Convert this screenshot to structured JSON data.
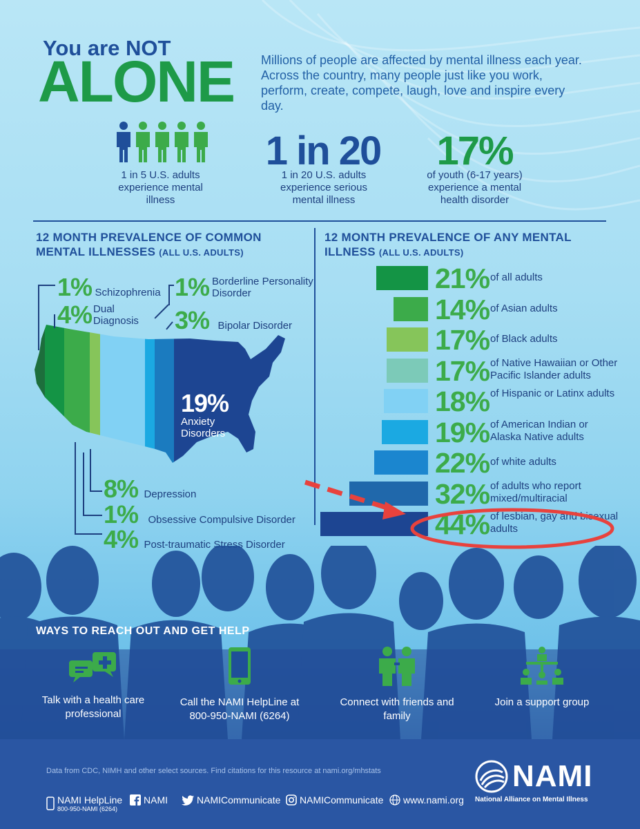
{
  "header": {
    "line1": "You are NOT",
    "line2": "ALONE",
    "intro": "Millions of people are affected by mental illness each year. Across the country, many people just like you work, perform, create, compete, laugh, love and inspire every day."
  },
  "stats": [
    {
      "big": "",
      "caption": "1 in 5 U.S. adults experience mental illness"
    },
    {
      "big": "1 in 20",
      "caption": "1 in 20 U.S. adults experience serious mental illness"
    },
    {
      "big": "17%",
      "caption": "of youth (6-17 years) experience a mental health disorder"
    }
  ],
  "left_section": {
    "title": "12 MONTH PREVALENCE OF COMMON MENTAL ILLNESSES",
    "subtitle": "(ALL U.S. ADULTS)",
    "items": [
      {
        "pct": "1%",
        "label": "Schizophrenia"
      },
      {
        "pct": "4%",
        "label": "Dual Diagnosis"
      },
      {
        "pct": "1%",
        "label": "Borderline Personality Disorder"
      },
      {
        "pct": "3%",
        "label": "Bipolar Disorder"
      },
      {
        "pct": "19%",
        "label": "Anxiety Disorders"
      },
      {
        "pct": "8%",
        "label": "Depression"
      },
      {
        "pct": "1%",
        "label": "Obsessive Compulsive Disorder"
      },
      {
        "pct": "4%",
        "label": "Post-traumatic Stress Disorder"
      }
    ]
  },
  "right_section": {
    "title": "12 MONTH PREVALENCE OF ANY MENTAL ILLNESS",
    "subtitle": "(ALL U.S. ADULTS)"
  },
  "chart_data": {
    "type": "bar",
    "orientation": "horizontal",
    "title": "12 MONTH PREVALENCE OF ANY MENTAL ILLNESS (ALL U.S. ADULTS)",
    "categories": [
      "of all adults",
      "of Asian adults",
      "of Black adults",
      "of Native Hawaiian or Other Pacific Islander adults",
      "of Hispanic or Latinx adults",
      "of American Indian or Alaska Native adults",
      "of white adults",
      "of adults who report mixed/multiracial",
      "of lesbian, gay and bisexual adults"
    ],
    "values": [
      21,
      14,
      17,
      17,
      18,
      19,
      22,
      32,
      44
    ],
    "labels": [
      "21%",
      "14%",
      "17%",
      "17%",
      "18%",
      "19%",
      "22%",
      "32%",
      "44%"
    ],
    "colors": [
      "#149445",
      "#3cab4a",
      "#86c55a",
      "#7ccab8",
      "#81d1f4",
      "#1ba9e2",
      "#1b86cf",
      "#2068ab",
      "#1d4592"
    ],
    "highlighted_category": "of lesbian, gay and bisexual adults"
  },
  "help": {
    "title": "WAYS TO REACH OUT AND GET HELP",
    "items": [
      {
        "icon": "chat-plus-icon",
        "label": "Talk with a health care professional"
      },
      {
        "icon": "phone-icon",
        "label": "Call the NAMI HelpLine at 800-950-NAMI (6264)"
      },
      {
        "icon": "people-icon",
        "label": "Connect with friends and family"
      },
      {
        "icon": "group-icon",
        "label": "Join a support group"
      }
    ]
  },
  "footer": {
    "source": "Data from CDC, NIMH and other select sources. Find citations for this resource at nami.org/mhstats",
    "helpline_label": "NAMI HelpLine",
    "helpline_number": "800-950-NAMI (6264)",
    "facebook": "NAMI",
    "twitter": "NAMICommunicate",
    "instagram": "NAMICommunicate",
    "website": "www.nami.org",
    "logo_text": "NAMI",
    "logo_subtitle": "National Alliance on Mental Illness"
  },
  "colors": {
    "navy": "#1d3f7f",
    "green": "#3cab4a",
    "dark_green": "#1e9a48",
    "highlight_red": "#e8423d",
    "footer_blue": "#2a56a3"
  }
}
